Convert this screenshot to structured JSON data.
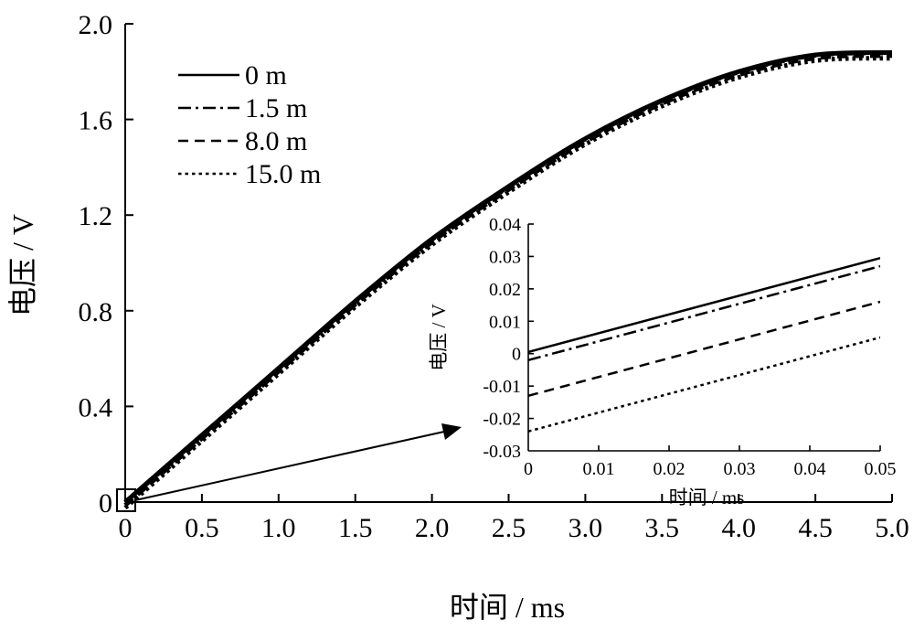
{
  "chart_data": [
    {
      "type": "line",
      "title": "",
      "xlabel": "时间 / ms",
      "ylabel": "电压 / V",
      "xlim": [
        0,
        5.0
      ],
      "ylim": [
        0,
        2.0
      ],
      "x_ticks": [
        "0",
        "0.5",
        "1.0",
        "1.5",
        "2.0",
        "2.5",
        "3.0",
        "3.5",
        "4.0",
        "4.5",
        "5.0"
      ],
      "y_ticks": [
        "0",
        "0.4",
        "0.8",
        "1.2",
        "1.6",
        "2.0"
      ],
      "legend_position": "top-left",
      "series": [
        {
          "name": "0 m",
          "style": "solid",
          "x": [
            0,
            0.5,
            1.0,
            1.5,
            2.0,
            2.5,
            3.0,
            3.5,
            4.0,
            4.5,
            5.0
          ],
          "values": [
            0,
            0.28,
            0.56,
            0.84,
            1.1,
            1.32,
            1.52,
            1.68,
            1.8,
            1.87,
            1.88
          ]
        },
        {
          "name": "1.5 m",
          "style": "dashdot",
          "x": [
            0,
            0.5,
            1.0,
            1.5,
            2.0,
            2.5,
            3.0,
            3.5,
            4.0,
            4.5,
            5.0
          ],
          "values": [
            -0.002,
            0.278,
            0.558,
            0.838,
            1.098,
            1.318,
            1.518,
            1.678,
            1.798,
            1.868,
            1.878
          ]
        },
        {
          "name": "8.0 m",
          "style": "dashed",
          "x": [
            0,
            0.5,
            1.0,
            1.5,
            2.0,
            2.5,
            3.0,
            3.5,
            4.0,
            4.5,
            5.0
          ],
          "values": [
            -0.013,
            0.267,
            0.547,
            0.827,
            1.087,
            1.307,
            1.507,
            1.667,
            1.787,
            1.857,
            1.867
          ]
        },
        {
          "name": "15.0 m",
          "style": "dotted",
          "x": [
            0,
            0.5,
            1.0,
            1.5,
            2.0,
            2.5,
            3.0,
            3.5,
            4.0,
            4.5,
            5.0
          ],
          "values": [
            -0.024,
            0.256,
            0.536,
            0.816,
            1.076,
            1.296,
            1.496,
            1.656,
            1.776,
            1.846,
            1.856
          ]
        }
      ]
    },
    {
      "type": "line",
      "title": "",
      "xlabel": "时间 / ms",
      "ylabel": "电压 / V",
      "xlim": [
        0,
        0.05
      ],
      "ylim": [
        -0.03,
        0.04
      ],
      "x_ticks": [
        "0",
        "0.01",
        "0.02",
        "0.03",
        "0.04",
        "0.05"
      ],
      "y_ticks": [
        "0.04",
        "0.03",
        "0.02",
        "0.01",
        "0",
        "-0.01",
        "-0.02",
        "-0.03"
      ],
      "series": [
        {
          "name": "0 m",
          "style": "solid",
          "x": [
            0,
            0.05
          ],
          "values": [
            0.0005,
            0.0295
          ]
        },
        {
          "name": "1.5 m",
          "style": "dashdot",
          "x": [
            0,
            0.05
          ],
          "values": [
            -0.002,
            0.027
          ]
        },
        {
          "name": "8.0 m",
          "style": "dashed",
          "x": [
            0,
            0.05
          ],
          "values": [
            -0.013,
            0.016
          ]
        },
        {
          "name": "15.0 m",
          "style": "dotted",
          "x": [
            0,
            0.05
          ],
          "values": [
            -0.024,
            0.005
          ]
        }
      ]
    }
  ]
}
